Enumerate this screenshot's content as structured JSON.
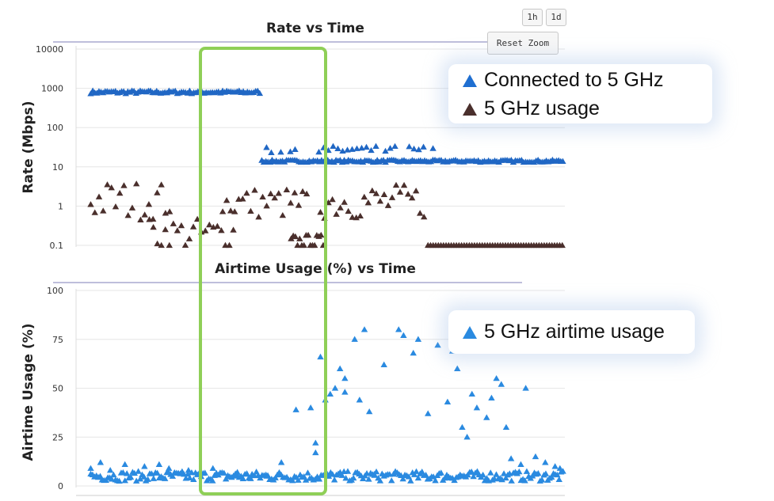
{
  "toolbar": {
    "btn_1h": "1h",
    "btn_1d": "1d",
    "reset_zoom": "Reset Zoom"
  },
  "colors": {
    "connected": "#2067c4",
    "usage": "#4a2f2c",
    "airtime": "#2a8ae0",
    "highlight": "#8fcf57",
    "rule": "#a9a9cf",
    "grid": "#e6e6e6"
  },
  "legend_rate": {
    "items": [
      {
        "label": "Connected to 5 GHz",
        "color": "#1f6fd1"
      },
      {
        "label": "5 GHz usage",
        "color": "#4a2f2c"
      }
    ]
  },
  "legend_airtime": {
    "items": [
      {
        "label": "5 GHz airtime usage",
        "color": "#2a8ae0"
      }
    ]
  },
  "chart_data": [
    {
      "type": "scatter",
      "title": "Rate vs Time",
      "ylabel": "Rate (Mbps)",
      "xlabel": "",
      "yscale": "log",
      "ylim": [
        0.1,
        10000
      ],
      "yticks": [
        "10000",
        "1000",
        "100",
        "10",
        "1",
        "0.1"
      ],
      "grid": true,
      "marker": "triangle",
      "series": [
        {
          "name": "Connected to 5 GHz",
          "segments": [
            {
              "x_start": 0.03,
              "x_end": 0.38,
              "y": 800,
              "band": 0.04
            },
            {
              "x_start": 0.38,
              "x_end": 1.0,
              "y": 14,
              "band": 0.03
            },
            {
              "x_start": 0.38,
              "x_end": 0.74,
              "y": 27,
              "band": 0.1,
              "sparse": true
            }
          ]
        },
        {
          "name": "5 GHz usage",
          "segments": [
            {
              "x_start": 0.03,
              "x_end": 0.2,
              "y": 1.4,
              "band": 0.5
            },
            {
              "x_start": 0.15,
              "x_end": 0.33,
              "y": 0.2,
              "band": 0.4
            },
            {
              "x_start": 0.3,
              "x_end": 0.48,
              "y": 1.2,
              "band": 0.4
            },
            {
              "x_start": 0.44,
              "x_end": 0.51,
              "y": 0.12,
              "band": 0.2
            },
            {
              "x_start": 0.5,
              "x_end": 0.72,
              "y": 1.3,
              "band": 0.45
            },
            {
              "x_start": 0.72,
              "x_end": 1.0,
              "y": 0.1,
              "band": 0.0
            }
          ]
        }
      ]
    },
    {
      "type": "scatter",
      "title": "Airtime Usage (%) vs Time",
      "ylabel": "Airtime Usage (%)",
      "xlabel": "",
      "ylim": [
        0,
        100
      ],
      "yticks": [
        "100",
        "75",
        "50",
        "25",
        "0"
      ],
      "grid": true,
      "marker": "triangle",
      "series": [
        {
          "name": "5 GHz airtime usage",
          "baseline": {
            "x_start": 0.03,
            "x_end": 1.0,
            "y": 5,
            "band": 2.5
          },
          "spikes": [
            [
              0.03,
              9
            ],
            [
              0.05,
              12
            ],
            [
              0.07,
              8
            ],
            [
              0.1,
              11
            ],
            [
              0.14,
              10
            ],
            [
              0.17,
              11
            ],
            [
              0.19,
              9
            ],
            [
              0.23,
              8
            ],
            [
              0.28,
              9
            ],
            [
              0.33,
              7
            ],
            [
              0.36,
              6
            ],
            [
              0.39,
              5
            ],
            [
              0.42,
              12
            ],
            [
              0.45,
              39
            ],
            [
              0.48,
              40
            ],
            [
              0.49,
              22
            ],
            [
              0.49,
              17
            ],
            [
              0.5,
              66
            ],
            [
              0.51,
              44
            ],
            [
              0.52,
              47
            ],
            [
              0.53,
              50
            ],
            [
              0.54,
              60
            ],
            [
              0.55,
              48
            ],
            [
              0.55,
              55
            ],
            [
              0.57,
              75
            ],
            [
              0.58,
              44
            ],
            [
              0.59,
              80
            ],
            [
              0.6,
              38
            ],
            [
              0.61,
              6
            ],
            [
              0.63,
              62
            ],
            [
              0.66,
              80
            ],
            [
              0.67,
              77
            ],
            [
              0.69,
              68
            ],
            [
              0.7,
              75
            ],
            [
              0.72,
              37
            ],
            [
              0.74,
              72
            ],
            [
              0.76,
              43
            ],
            [
              0.77,
              69
            ],
            [
              0.78,
              60
            ],
            [
              0.79,
              30
            ],
            [
              0.8,
              25
            ],
            [
              0.81,
              47
            ],
            [
              0.82,
              40
            ],
            [
              0.83,
              77
            ],
            [
              0.84,
              35
            ],
            [
              0.85,
              45
            ],
            [
              0.86,
              55
            ],
            [
              0.87,
              52
            ],
            [
              0.88,
              30
            ],
            [
              0.89,
              14
            ],
            [
              0.9,
              77
            ],
            [
              0.91,
              11
            ],
            [
              0.92,
              50
            ],
            [
              0.94,
              15
            ],
            [
              0.96,
              12
            ],
            [
              0.98,
              10
            ],
            [
              0.99,
              9
            ]
          ]
        }
      ]
    }
  ]
}
